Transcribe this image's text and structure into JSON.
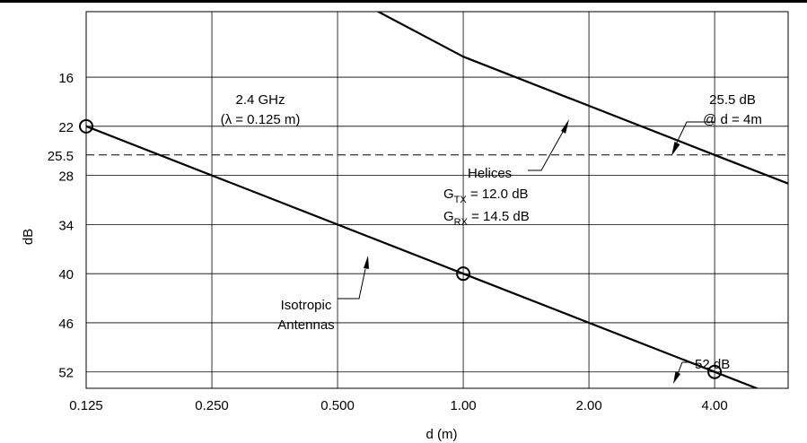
{
  "chart_data": {
    "type": "line",
    "xlabel": "d (m)",
    "ylabel": "dB",
    "x_scale": "log2",
    "xlim": [
      0.125,
      6.0
    ],
    "ylim": [
      8,
      54
    ],
    "y_inverted": true,
    "x_ticks": [
      0.125,
      0.25,
      0.5,
      1.0,
      2.0,
      4.0
    ],
    "x_tick_labels": [
      "0.125",
      "0.250",
      "0.500",
      "1.00",
      "2.00",
      "4.00"
    ],
    "y_ticks": [
      16,
      22,
      28,
      34,
      40,
      46,
      52
    ],
    "y_tick_labels": [
      "16",
      "22",
      "28",
      "34",
      "40",
      "46",
      "52"
    ],
    "grid": true,
    "reference_line": {
      "y": 25.5,
      "label": "25.5",
      "style": "dashed"
    },
    "series": [
      {
        "name": "Isotropic Antennas",
        "x": [
          0.125,
          1.0,
          4.0,
          6.0
        ],
        "y": [
          22,
          40,
          52,
          55.5
        ],
        "markers": [
          {
            "x": 0.125,
            "y": 22
          },
          {
            "x": 1.0,
            "y": 40
          },
          {
            "x": 4.0,
            "y": 52
          }
        ]
      },
      {
        "name": "Helices",
        "x": [
          0.615,
          1.0,
          4.0,
          6.0
        ],
        "y": [
          7.8,
          13.5,
          25.5,
          29.0
        ],
        "markers": []
      }
    ],
    "annotations": {
      "freq_line1": "2.4 GHz",
      "freq_line2": "(λ = 0.125 m)",
      "db255_line1": "25.5 dB",
      "db255_line2": "@ d = 4m",
      "helices_label": "Helices",
      "gtx_g": "G",
      "gtx_sub": "TX",
      "gtx_rest": " = 12.0 dB",
      "grx_g": "G",
      "grx_sub": "RX",
      "grx_rest": " = 14.5 dB",
      "iso_line1": "Isotropic",
      "iso_line2": "Antennas",
      "db52": "52 dB"
    }
  }
}
